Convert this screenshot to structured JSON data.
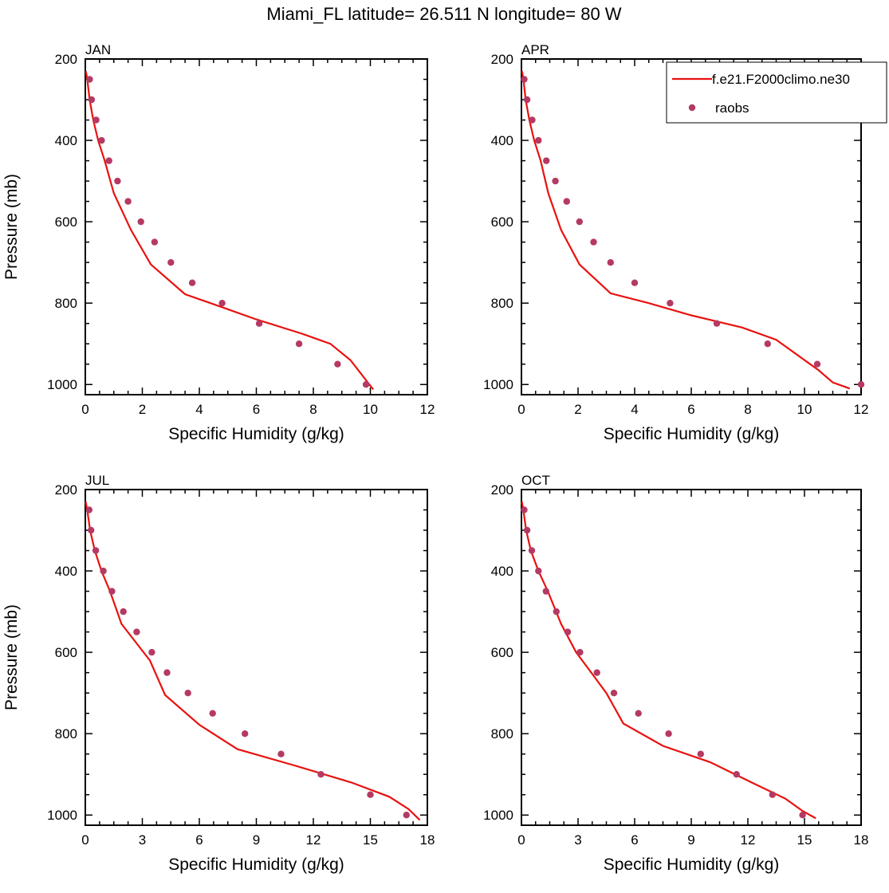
{
  "title": "Miami_FL  latitude= 26.511 N longitude= 80 W",
  "colors": {
    "model": "#e8120f",
    "obs": "#b43a63"
  },
  "legend": {
    "model_label": "f.e21.F2000climo.ne30",
    "obs_label": "raobs"
  },
  "chart_data": [
    {
      "type": "line",
      "panel": "JAN",
      "xlabel": "Specific Humidity (g/kg)",
      "ylabel": "Pressure (mb)",
      "xlim": [
        0,
        12
      ],
      "ylim": [
        200,
        1025
      ],
      "y_reversed": true,
      "xticks": [
        0,
        2,
        4,
        6,
        8,
        10,
        12
      ],
      "yticks": [
        200,
        400,
        600,
        800,
        1000
      ],
      "series": [
        {
          "name": "f.e21.F2000climo.ne30",
          "style": "line",
          "x": [
            0.02,
            0.07,
            0.15,
            0.28,
            0.45,
            0.68,
            1.0,
            1.6,
            2.3,
            3.5,
            4.8,
            6.0,
            7.6,
            8.6,
            9.3,
            10.1
          ],
          "y": [
            230,
            250,
            300,
            350,
            400,
            450,
            530,
            620,
            705,
            778,
            810,
            840,
            875,
            900,
            940,
            1012
          ]
        },
        {
          "name": "raobs",
          "style": "marker",
          "x": [
            0.15,
            0.22,
            0.38,
            0.57,
            0.83,
            1.13,
            1.5,
            1.95,
            2.43,
            3.0,
            3.75,
            4.8,
            6.1,
            7.5,
            8.85,
            9.85
          ],
          "y": [
            250,
            300,
            350,
            400,
            450,
            500,
            550,
            600,
            650,
            700,
            750,
            800,
            850,
            900,
            950,
            1000
          ]
        }
      ]
    },
    {
      "type": "line",
      "panel": "APR",
      "xlabel": "Specific Humidity (g/kg)",
      "ylabel": "",
      "xlim": [
        0,
        12
      ],
      "ylim": [
        200,
        1025
      ],
      "y_reversed": true,
      "xticks": [
        0,
        2,
        4,
        6,
        8,
        10,
        12
      ],
      "yticks": [
        200,
        400,
        600,
        800,
        1000
      ],
      "series": [
        {
          "name": "f.e21.F2000climo.ne30",
          "style": "line",
          "x": [
            0.02,
            0.07,
            0.15,
            0.28,
            0.45,
            0.68,
            0.95,
            1.4,
            2.05,
            3.15,
            4.5,
            6.0,
            7.8,
            9.0,
            9.8,
            10.5,
            11.0,
            11.6
          ],
          "y": [
            230,
            250,
            300,
            350,
            400,
            450,
            530,
            620,
            705,
            776,
            800,
            830,
            860,
            890,
            930,
            965,
            995,
            1010
          ]
        },
        {
          "name": "raobs",
          "style": "marker",
          "x": [
            0.1,
            0.2,
            0.38,
            0.6,
            0.88,
            1.2,
            1.6,
            2.05,
            2.55,
            3.15,
            4.0,
            5.25,
            6.9,
            8.7,
            10.45,
            12.0
          ],
          "y": [
            250,
            300,
            350,
            400,
            450,
            500,
            550,
            600,
            650,
            700,
            750,
            800,
            850,
            900,
            950,
            1000
          ]
        }
      ]
    },
    {
      "type": "line",
      "panel": "JUL",
      "xlabel": "Specific Humidity (g/kg)",
      "ylabel": "Pressure (mb)",
      "xlim": [
        0,
        18
      ],
      "ylim": [
        200,
        1025
      ],
      "y_reversed": true,
      "xticks": [
        0,
        3,
        6,
        9,
        12,
        15,
        18
      ],
      "yticks": [
        200,
        400,
        600,
        800,
        1000
      ],
      "series": [
        {
          "name": "f.e21.F2000climo.ne30",
          "style": "line",
          "x": [
            0.02,
            0.1,
            0.25,
            0.5,
            0.85,
            1.3,
            1.9,
            2.9,
            3.4,
            4.2,
            6.0,
            8.0,
            11.0,
            14.0,
            16.0,
            17.0,
            17.6
          ],
          "y": [
            230,
            250,
            300,
            350,
            400,
            450,
            530,
            590,
            620,
            705,
            778,
            838,
            878,
            920,
            955,
            985,
            1012
          ]
        },
        {
          "name": "raobs",
          "style": "marker",
          "x": [
            0.2,
            0.3,
            0.55,
            0.95,
            1.4,
            2.0,
            2.7,
            3.5,
            4.3,
            5.4,
            6.7,
            8.4,
            10.3,
            12.4,
            15.0,
            16.9
          ],
          "y": [
            250,
            300,
            350,
            400,
            450,
            500,
            550,
            600,
            650,
            700,
            750,
            800,
            850,
            900,
            950,
            1000
          ]
        }
      ]
    },
    {
      "type": "line",
      "panel": "OCT",
      "xlabel": "Specific Humidity (g/kg)",
      "ylabel": "",
      "xlim": [
        0,
        18
      ],
      "ylim": [
        200,
        1025
      ],
      "y_reversed": true,
      "xticks": [
        0,
        3,
        6,
        9,
        12,
        15,
        18
      ],
      "yticks": [
        200,
        400,
        600,
        800,
        1000
      ],
      "series": [
        {
          "name": "f.e21.F2000climo.ne30",
          "style": "line",
          "x": [
            0.02,
            0.1,
            0.25,
            0.5,
            0.9,
            1.4,
            2.1,
            2.9,
            3.7,
            4.5,
            5.4,
            7.5,
            10.0,
            12.2,
            14.0,
            14.9,
            15.6
          ],
          "y": [
            230,
            250,
            300,
            350,
            400,
            450,
            530,
            600,
            650,
            700,
            775,
            830,
            870,
            920,
            960,
            990,
            1008
          ]
        },
        {
          "name": "raobs",
          "style": "marker",
          "x": [
            0.15,
            0.3,
            0.55,
            0.9,
            1.3,
            1.85,
            2.45,
            3.1,
            4.0,
            4.9,
            6.2,
            7.8,
            9.5,
            11.4,
            13.3,
            14.9
          ],
          "y": [
            250,
            300,
            350,
            400,
            450,
            500,
            550,
            600,
            650,
            700,
            750,
            800,
            850,
            900,
            950,
            1000
          ]
        }
      ]
    }
  ]
}
